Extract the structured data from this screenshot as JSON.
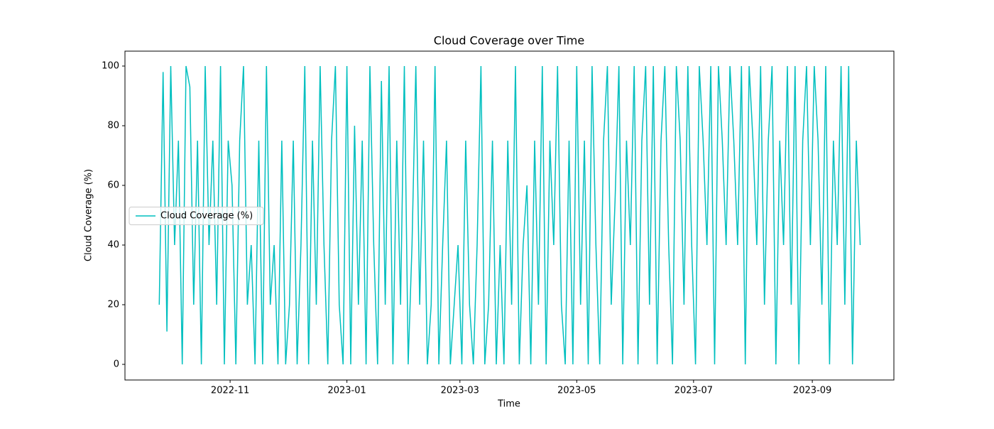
{
  "chart_data": {
    "type": "line",
    "title": "Cloud Coverage over Time",
    "xlabel": "Time",
    "ylabel": "Cloud Coverage (%)",
    "x": [
      19260,
      19262,
      19264,
      19266,
      19268,
      19270,
      19272,
      19274,
      19276,
      19278,
      19280,
      19282,
      19284,
      19286,
      19288,
      19290,
      19292,
      19294,
      19296,
      19298,
      19300,
      19302,
      19304,
      19306,
      19308,
      19310,
      19312,
      19314,
      19316,
      19318,
      19320,
      19322,
      19324,
      19326,
      19328,
      19330,
      19332,
      19334,
      19336,
      19338,
      19340,
      19342,
      19344,
      19346,
      19348,
      19350,
      19352,
      19354,
      19356,
      19358,
      19360,
      19362,
      19364,
      19366,
      19368,
      19370,
      19372,
      19374,
      19376,
      19378,
      19380,
      19382,
      19384,
      19386,
      19388,
      19390,
      19392,
      19394,
      19396,
      19398,
      19400,
      19402,
      19404,
      19406,
      19408,
      19410,
      19412,
      19414,
      19416,
      19418,
      19420,
      19422,
      19424,
      19426,
      19428,
      19430,
      19432,
      19434,
      19436,
      19438,
      19440,
      19442,
      19444,
      19446,
      19448,
      19450,
      19452,
      19454,
      19456,
      19458,
      19460,
      19462,
      19464,
      19466,
      19468,
      19470,
      19472,
      19474,
      19476,
      19478,
      19480,
      19482,
      19484,
      19486,
      19488,
      19490,
      19492,
      19494,
      19496,
      19498,
      19500,
      19502,
      19504,
      19506,
      19508,
      19510,
      19512,
      19514,
      19516,
      19518,
      19520,
      19522,
      19524,
      19526,
      19528,
      19530,
      19532,
      19534,
      19536,
      19538,
      19540,
      19542,
      19544,
      19546,
      19548,
      19550,
      19552,
      19554,
      19556,
      19558,
      19560,
      19562,
      19564,
      19566,
      19568,
      19570,
      19572,
      19574,
      19576,
      19578,
      19580,
      19582,
      19584,
      19586,
      19588,
      19590,
      19592,
      19594,
      19596,
      19598,
      19600,
      19602,
      19604,
      19606,
      19608,
      19610,
      19612,
      19614,
      19616,
      19618,
      19620,
      19622,
      19624,
      19626
    ],
    "series": [
      {
        "name": "Cloud Coverage (%)",
        "color": "#00bfbf",
        "values": [
          20,
          98,
          11,
          100,
          40,
          75,
          0,
          100,
          93,
          20,
          75,
          0,
          100,
          40,
          75,
          20,
          100,
          0,
          75,
          60,
          0,
          75,
          100,
          20,
          40,
          0,
          75,
          0,
          100,
          20,
          40,
          0,
          75,
          0,
          20,
          75,
          0,
          40,
          100,
          0,
          75,
          20,
          100,
          40,
          0,
          75,
          100,
          20,
          0,
          100,
          0,
          80,
          20,
          75,
          0,
          100,
          40,
          0,
          95,
          20,
          100,
          0,
          75,
          20,
          100,
          0,
          40,
          100,
          20,
          75,
          0,
          20,
          100,
          0,
          40,
          75,
          0,
          20,
          40,
          0,
          75,
          20,
          0,
          40,
          100,
          0,
          20,
          75,
          0,
          40,
          0,
          75,
          20,
          100,
          0,
          40,
          60,
          0,
          75,
          20,
          100,
          0,
          75,
          40,
          100,
          20,
          0,
          75,
          0,
          100,
          20,
          75,
          0,
          100,
          40,
          0,
          75,
          100,
          20,
          55,
          100,
          0,
          75,
          40,
          100,
          0,
          75,
          100,
          20,
          100,
          0,
          75,
          100,
          40,
          0,
          100,
          75,
          20,
          100,
          40,
          0,
          100,
          75,
          40,
          100,
          0,
          100,
          75,
          40,
          100,
          75,
          40,
          100,
          0,
          100,
          75,
          40,
          100,
          20,
          75,
          100,
          0,
          75,
          40,
          100,
          20,
          100,
          0,
          75,
          100,
          40,
          100,
          75,
          20,
          100,
          0,
          75,
          40,
          100,
          20,
          100,
          0,
          75,
          40
        ]
      }
    ],
    "xlim": [
      19242.1,
      19643.6
    ],
    "ylim": [
      -5.24,
      105
    ],
    "xticks": [
      {
        "value": 19297,
        "label": "2022-11"
      },
      {
        "value": 19358,
        "label": "2023-01"
      },
      {
        "value": 19417,
        "label": "2023-03"
      },
      {
        "value": 19478,
        "label": "2023-05"
      },
      {
        "value": 19539,
        "label": "2023-07"
      },
      {
        "value": 19601,
        "label": "2023-09"
      }
    ],
    "yticks": [
      0,
      20,
      40,
      60,
      80,
      100
    ],
    "legend": "center left"
  }
}
